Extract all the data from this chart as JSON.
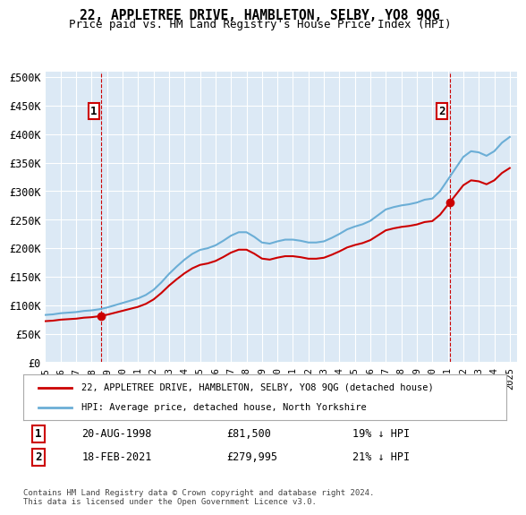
{
  "title": "22, APPLETREE DRIVE, HAMBLETON, SELBY, YO8 9QG",
  "subtitle": "Price paid vs. HM Land Registry's House Price Index (HPI)",
  "background_color": "#dce9f5",
  "plot_bg_color": "#dce9f5",
  "ylabel_ticks": [
    "£0",
    "£50K",
    "£100K",
    "£150K",
    "£200K",
    "£250K",
    "£300K",
    "£350K",
    "£400K",
    "£450K",
    "£500K"
  ],
  "ytick_values": [
    0,
    50000,
    100000,
    150000,
    200000,
    250000,
    300000,
    350000,
    400000,
    450000,
    500000
  ],
  "ylim": [
    0,
    510000
  ],
  "xlim_start": 1995.0,
  "xlim_end": 2025.5,
  "xtick_years": [
    1995,
    1996,
    1997,
    1998,
    1999,
    2000,
    2001,
    2002,
    2003,
    2004,
    2005,
    2006,
    2007,
    2008,
    2009,
    2010,
    2011,
    2012,
    2013,
    2014,
    2015,
    2016,
    2017,
    2018,
    2019,
    2020,
    2021,
    2022,
    2023,
    2024,
    2025
  ],
  "sale1_x": 1998.64,
  "sale1_y": 81500,
  "sale1_label": "1",
  "sale2_x": 2021.12,
  "sale2_y": 279995,
  "sale2_label": "2",
  "hpi_color": "#6baed6",
  "price_color": "#cc0000",
  "vline_color": "#cc0000",
  "legend_entry1": "22, APPLETREE DRIVE, HAMBLETON, SELBY, YO8 9QG (detached house)",
  "legend_entry2": "HPI: Average price, detached house, North Yorkshire",
  "annotation1_date": "20-AUG-1998",
  "annotation1_price": "£81,500",
  "annotation1_hpi": "19% ↓ HPI",
  "annotation2_date": "18-FEB-2021",
  "annotation2_price": "£279,995",
  "annotation2_hpi": "21% ↓ HPI",
  "footnote": "Contains HM Land Registry data © Crown copyright and database right 2024.\nThis data is licensed under the Open Government Licence v3.0."
}
